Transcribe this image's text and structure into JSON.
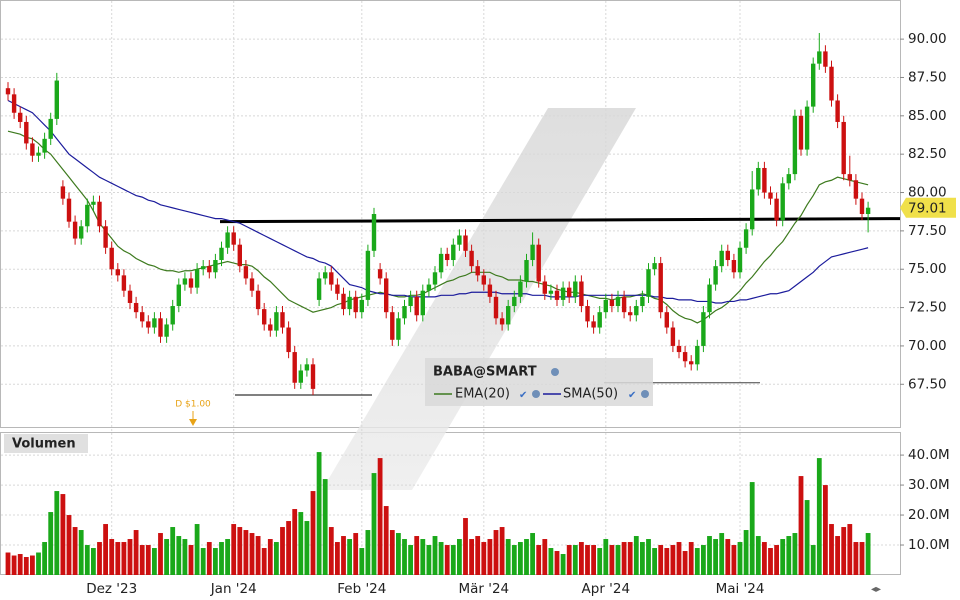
{
  "chart_data": [
    {
      "type": "candlestick",
      "title": "BABA@SMART",
      "up_color": "#1aa81a",
      "down_color": "#cc1010",
      "ylim": [
        64.65,
        92.55
      ],
      "yticks": [
        {
          "value": 67.5,
          "label": "67.50"
        },
        {
          "value": 70,
          "label": "70.00"
        },
        {
          "value": 72.5,
          "label": "72.50"
        },
        {
          "value": 75,
          "label": "75.00"
        },
        {
          "value": 77.5,
          "label": "77.50"
        },
        {
          "value": 80,
          "label": "80.00"
        },
        {
          "value": 82.5,
          "label": "82.50"
        },
        {
          "value": 85,
          "label": "85.00"
        },
        {
          "value": 87.5,
          "label": "87.50"
        },
        {
          "value": 90,
          "label": "90.00"
        }
      ],
      "grid": true,
      "open": [
        86.8,
        86.4,
        85.2,
        84.6,
        83.2,
        82.4,
        82.6,
        83.5,
        84.8,
        80.4,
        79.6,
        78.1,
        77.0,
        77.8,
        79.2,
        79.4,
        77.8,
        76.4,
        75.0,
        74.6,
        73.6,
        72.8,
        72.2,
        71.6,
        71.2,
        71.8,
        70.6,
        71.4,
        72.6,
        74.0,
        74.4,
        73.8,
        75.0,
        75.2,
        74.8,
        75.6,
        76.4,
        77.4,
        76.6,
        75.2,
        74.4,
        73.6,
        72.4,
        71.4,
        71.0,
        72.2,
        71.2,
        69.6,
        67.6,
        68.4,
        68.8,
        73.0,
        74.4,
        74.8,
        74.0,
        73.4,
        72.4,
        73.2,
        72.2,
        73.0,
        76.2,
        75.0,
        74.4,
        72.2,
        70.4,
        71.8,
        72.6,
        73.2,
        72.0,
        73.6,
        74.0,
        74.8,
        76.0,
        75.6,
        76.6,
        77.2,
        76.2,
        75.2,
        74.6,
        74.0,
        73.2,
        71.8,
        71.4,
        72.6,
        73.2,
        74.2,
        75.6,
        76.6,
        74.2,
        73.4,
        73.6,
        73.0,
        73.8,
        73.2,
        74.2,
        72.6,
        71.6,
        71.2,
        72.2,
        73.0,
        72.6,
        73.2,
        72.2,
        72.0,
        72.6,
        73.2,
        75.0,
        75.4,
        72.2,
        71.2,
        70.0,
        69.6,
        69.0,
        68.8,
        70.0,
        72.2,
        74.0,
        75.2,
        76.2,
        75.6,
        74.8,
        76.4,
        77.6,
        80.2,
        81.6,
        80.0,
        79.6,
        78.2,
        80.6,
        81.2,
        85.0,
        82.8,
        85.6,
        88.4,
        89.2,
        88.2,
        86.0,
        84.6,
        81.2,
        80.8,
        79.6,
        78.6
      ],
      "high": [
        87.2,
        86.8,
        85.6,
        85.0,
        83.6,
        83.0,
        83.9,
        85.2,
        87.8,
        80.8,
        80.0,
        78.5,
        78.2,
        79.6,
        79.8,
        79.8,
        78.2,
        76.8,
        75.4,
        75.0,
        74.0,
        73.2,
        72.6,
        72.0,
        72.2,
        72.2,
        71.8,
        73.0,
        74.4,
        74.8,
        74.8,
        75.4,
        75.6,
        75.6,
        76.0,
        76.8,
        77.8,
        77.8,
        77.0,
        75.6,
        74.8,
        74.0,
        72.8,
        71.8,
        72.6,
        72.6,
        71.6,
        70.0,
        68.8,
        69.2,
        69.2,
        74.8,
        75.2,
        75.2,
        74.4,
        73.8,
        73.6,
        73.6,
        73.4,
        76.6,
        79.0,
        75.4,
        74.8,
        72.6,
        72.2,
        73.0,
        73.6,
        73.6,
        74.0,
        74.4,
        75.2,
        76.4,
        76.4,
        77.0,
        77.6,
        77.6,
        76.6,
        75.6,
        75.0,
        74.4,
        73.6,
        72.2,
        73.0,
        73.6,
        74.6,
        76.0,
        77.4,
        77.0,
        74.6,
        74.0,
        74.0,
        74.2,
        74.2,
        74.6,
        74.6,
        73.0,
        72.0,
        72.6,
        73.4,
        73.4,
        73.6,
        73.6,
        72.6,
        73.0,
        73.6,
        75.4,
        75.8,
        75.8,
        72.6,
        71.6,
        70.4,
        70.0,
        69.4,
        70.4,
        72.6,
        74.4,
        75.6,
        76.6,
        76.6,
        76.0,
        76.8,
        78.0,
        81.4,
        82.0,
        82.0,
        80.4,
        80.0,
        81.0,
        81.6,
        85.4,
        85.4,
        86.0,
        88.8,
        90.4,
        89.6,
        88.6,
        86.4,
        85.0,
        82.4,
        81.2,
        80.0,
        79.4
      ],
      "low": [
        86.0,
        84.8,
        84.2,
        82.8,
        82.0,
        82.0,
        82.2,
        83.1,
        84.4,
        79.2,
        77.7,
        76.6,
        76.6,
        77.4,
        78.8,
        77.4,
        76.0,
        74.6,
        74.2,
        73.2,
        72.4,
        71.8,
        71.2,
        70.8,
        70.8,
        70.2,
        70.2,
        71.0,
        72.2,
        73.6,
        73.4,
        73.4,
        74.6,
        74.4,
        74.4,
        75.2,
        76.0,
        76.2,
        74.8,
        74.0,
        73.2,
        72.0,
        71.0,
        70.6,
        70.6,
        70.8,
        69.2,
        67.2,
        67.2,
        68.0,
        66.8,
        72.6,
        74.0,
        73.6,
        73.0,
        72.0,
        72.0,
        71.8,
        71.8,
        72.6,
        75.8,
        74.0,
        71.8,
        70.0,
        70.0,
        71.4,
        72.2,
        71.6,
        71.6,
        73.2,
        73.6,
        74.4,
        75.2,
        75.2,
        76.2,
        75.8,
        74.8,
        74.2,
        73.6,
        72.8,
        71.4,
        71.0,
        71.0,
        72.2,
        72.8,
        73.8,
        75.2,
        73.8,
        73.0,
        73.0,
        72.6,
        72.6,
        72.8,
        72.8,
        72.2,
        71.2,
        70.8,
        70.8,
        71.8,
        72.2,
        72.2,
        71.8,
        71.6,
        71.6,
        72.2,
        72.8,
        74.6,
        71.8,
        70.8,
        69.6,
        69.2,
        68.6,
        68.4,
        68.4,
        69.6,
        71.8,
        73.6,
        74.8,
        75.2,
        74.4,
        74.4,
        76.0,
        77.2,
        79.8,
        79.6,
        79.2,
        77.8,
        77.8,
        80.2,
        80.8,
        82.4,
        82.4,
        85.2,
        88.0,
        87.8,
        85.6,
        84.2,
        80.8,
        80.4,
        79.2,
        78.2,
        77.4
      ],
      "close": [
        86.4,
        85.2,
        84.6,
        83.2,
        82.4,
        82.6,
        83.5,
        84.8,
        87.3,
        79.6,
        78.1,
        77.0,
        77.8,
        79.2,
        79.4,
        77.8,
        76.4,
        75.0,
        74.6,
        73.6,
        72.8,
        72.2,
        71.6,
        71.2,
        71.8,
        70.6,
        71.4,
        72.6,
        74.0,
        74.4,
        73.8,
        75.0,
        75.2,
        74.8,
        75.6,
        76.4,
        77.4,
        76.6,
        75.2,
        74.4,
        73.6,
        72.4,
        71.4,
        71.0,
        72.2,
        71.2,
        69.6,
        67.6,
        68.4,
        68.8,
        67.2,
        74.4,
        74.8,
        74.0,
        73.4,
        72.4,
        73.2,
        72.2,
        73.0,
        76.2,
        78.6,
        74.4,
        72.2,
        70.4,
        71.8,
        72.6,
        73.2,
        72.0,
        73.6,
        74.0,
        74.8,
        76.0,
        75.6,
        76.6,
        77.2,
        76.2,
        75.2,
        74.6,
        74.0,
        73.2,
        71.8,
        71.4,
        72.6,
        73.2,
        74.2,
        75.6,
        76.6,
        74.2,
        73.4,
        73.6,
        73.0,
        73.8,
        73.2,
        74.2,
        72.6,
        71.6,
        71.2,
        72.2,
        73.0,
        72.6,
        73.2,
        72.2,
        72.0,
        72.6,
        73.2,
        75.0,
        75.4,
        72.2,
        71.2,
        70.0,
        69.6,
        69.0,
        68.8,
        70.0,
        72.2,
        74.0,
        75.2,
        76.2,
        75.6,
        74.8,
        76.4,
        77.6,
        80.2,
        81.6,
        80.0,
        79.6,
        78.2,
        80.6,
        81.2,
        85.0,
        82.8,
        85.6,
        88.4,
        89.2,
        88.2,
        86.0,
        84.6,
        81.2,
        80.8,
        79.6,
        78.6,
        79.01
      ],
      "last_price_color": "#f0e04a",
      "series": [
        {
          "name": "EMA(20)",
          "color": "#3d7a1e",
          "values": [
            84.0,
            83.9,
            83.8,
            83.6,
            83.5,
            83.2,
            82.8,
            82.5,
            82.0,
            81.5,
            81.0,
            80.5,
            80.0,
            79.5,
            78.8,
            78.0,
            77.5,
            77.0,
            76.5,
            76.2,
            76.0,
            75.7,
            75.5,
            75.3,
            75.2,
            75.0,
            74.9,
            74.9,
            74.8,
            74.9,
            74.9,
            75.0,
            75.1,
            75.2,
            75.3,
            75.4,
            75.5,
            75.4,
            75.3,
            75.3,
            75.2,
            74.9,
            74.5,
            74.2,
            73.8,
            73.4,
            73.0,
            72.8,
            72.6,
            72.4,
            72.2,
            72.3,
            72.4,
            72.5,
            72.7,
            72.8,
            73.0,
            73.1,
            73.2,
            73.3,
            73.4,
            73.5,
            73.4,
            73.3,
            73.2,
            73.2,
            73.3,
            73.3,
            73.4,
            73.6,
            73.8,
            74.0,
            74.2,
            74.3,
            74.5,
            74.6,
            74.8,
            74.8,
            74.8,
            74.8,
            74.6,
            74.5,
            74.3,
            74.3,
            74.3,
            74.2,
            74.2,
            74.1,
            74.0,
            73.9,
            73.7,
            73.6,
            73.5,
            73.5,
            73.4,
            73.3,
            73.2,
            73.1,
            73.1,
            73.0,
            73.1,
            73.2,
            73.2,
            73.3,
            73.4,
            73.3,
            73.1,
            73.0,
            72.7,
            72.3,
            72.0,
            71.8,
            71.7,
            71.5,
            71.7,
            72.0,
            72.3,
            72.5,
            72.8,
            73.2,
            73.6,
            74.1,
            74.5,
            75.0,
            75.5,
            75.9,
            76.4,
            76.8,
            77.4,
            78.0,
            78.5,
            79.2,
            79.8,
            80.5,
            80.7,
            80.8,
            81.0,
            80.9,
            80.8,
            80.7,
            80.6,
            80.5
          ]
        },
        {
          "name": "SMA(50)",
          "color": "#1c1c9c",
          "values": [
            86.0,
            85.8,
            85.6,
            85.4,
            85.2,
            84.8,
            84.4,
            84.0,
            83.5,
            83.0,
            82.5,
            82.2,
            81.9,
            81.6,
            81.3,
            81.0,
            80.8,
            80.6,
            80.4,
            80.2,
            80.0,
            79.8,
            79.7,
            79.5,
            79.4,
            79.2,
            79.1,
            79.0,
            78.9,
            78.8,
            78.7,
            78.6,
            78.5,
            78.4,
            78.3,
            78.3,
            78.2,
            78.1,
            78.0,
            77.8,
            77.6,
            77.4,
            77.2,
            77.0,
            76.8,
            76.6,
            76.4,
            76.2,
            76.0,
            75.8,
            75.7,
            75.5,
            75.4,
            75.2,
            74.8,
            74.4,
            74.0,
            73.9,
            73.8,
            73.6,
            73.5,
            73.4,
            73.4,
            73.3,
            73.3,
            73.3,
            73.2,
            73.2,
            73.2,
            73.2,
            73.2,
            73.3,
            73.3,
            73.3,
            73.4,
            73.4,
            73.5,
            73.5,
            73.5,
            73.5,
            73.5,
            73.4,
            73.4,
            73.4,
            73.4,
            73.4,
            73.3,
            73.3,
            73.3,
            73.2,
            73.2,
            73.2,
            73.2,
            73.2,
            73.3,
            73.3,
            73.3,
            73.3,
            73.3,
            73.3,
            73.3,
            73.3,
            73.3,
            73.3,
            73.3,
            73.3,
            73.2,
            73.2,
            73.1,
            73.1,
            73.0,
            73.0,
            73.0,
            72.9,
            72.9,
            72.9,
            72.8,
            72.8,
            72.9,
            72.9,
            73.0,
            73.0,
            73.1,
            73.2,
            73.3,
            73.4,
            73.4,
            73.5,
            73.6,
            73.9,
            74.2,
            74.5,
            74.8,
            75.2,
            75.5,
            75.8,
            75.9,
            76.0,
            76.1,
            76.2,
            76.3,
            76.4
          ]
        }
      ],
      "lines": [
        {
          "color": "#000000",
          "values": [
            78.1,
            78.3
          ]
        },
        {
          "color": "#000000",
          "values": [
            66.8,
            66.8
          ]
        },
        {
          "color": "#444444",
          "values": [
            67.6,
            67.6
          ]
        }
      ],
      "annotations": [
        {
          "text": "D $1.00",
          "color": "#e8a317"
        }
      ]
    },
    {
      "type": "bar",
      "title": "Volumen",
      "categories": [
        null,
        null,
        null,
        null,
        null,
        null,
        null,
        null,
        null,
        null,
        null,
        null,
        null,
        null,
        null,
        null,
        null,
        "Dez '23",
        null,
        null,
        null,
        null,
        null,
        null,
        null,
        null,
        null,
        null,
        null,
        null,
        null,
        null,
        null,
        null,
        null,
        null,
        null,
        "Jan '24",
        null,
        null,
        null,
        null,
        null,
        null,
        null,
        null,
        null,
        null,
        null,
        null,
        null,
        null,
        null,
        null,
        null,
        null,
        null,
        null,
        "Feb '24",
        null,
        null,
        null,
        null,
        null,
        null,
        null,
        null,
        null,
        null,
        null,
        null,
        null,
        null,
        null,
        null,
        null,
        null,
        null,
        "Mär '24",
        null,
        null,
        null,
        null,
        null,
        null,
        null,
        null,
        null,
        null,
        null,
        null,
        null,
        null,
        null,
        null,
        null,
        null,
        null,
        "Apr '24",
        null,
        null,
        null,
        null,
        null,
        null,
        null,
        null,
        null,
        null,
        null,
        null,
        null,
        null,
        null,
        null,
        null,
        null,
        null,
        null,
        null,
        "Mai '24",
        null,
        null,
        null,
        null,
        null,
        null,
        null,
        null,
        null,
        null,
        null,
        null,
        null,
        null,
        null,
        null,
        null,
        null,
        null,
        null,
        null
      ],
      "values": [
        7.5,
        6.5,
        7,
        6,
        6.5,
        7.5,
        11,
        21,
        28,
        27,
        20,
        16,
        15,
        10,
        9,
        11,
        17,
        12,
        11,
        11,
        12,
        15,
        10,
        10,
        9,
        14,
        12,
        16,
        13,
        12,
        10,
        17,
        9,
        11,
        9,
        11,
        12,
        17,
        16,
        15,
        14,
        13,
        9,
        12,
        11,
        16,
        18,
        22,
        21,
        18,
        28,
        41,
        32,
        16,
        11,
        13,
        12,
        14,
        9,
        15,
        34,
        39,
        23,
        15,
        14,
        12,
        10,
        13,
        12,
        10,
        13,
        11,
        10,
        10,
        12,
        19,
        12,
        13,
        11,
        12,
        15,
        16,
        12,
        10,
        11,
        12,
        14,
        10,
        12,
        9,
        8,
        7,
        10,
        10,
        11,
        10,
        10,
        9,
        12,
        10,
        10,
        11,
        11,
        13,
        11,
        12,
        9,
        10,
        9,
        10,
        11,
        8,
        11,
        9,
        10,
        13,
        12,
        14,
        12,
        10,
        11,
        15,
        31,
        13,
        11,
        9,
        10,
        12,
        13,
        14,
        33,
        25,
        10,
        39,
        30,
        17,
        13,
        16,
        17,
        11,
        11,
        14
      ],
      "ylim": [
        0,
        47.7
      ],
      "yticks": [
        {
          "value": 10,
          "label": "10.0M"
        },
        {
          "value": 20,
          "label": "20.0M"
        },
        {
          "value": 30,
          "label": "30.0M"
        },
        {
          "value": 40,
          "label": "40.0M"
        }
      ],
      "grid": true
    }
  ]
}
